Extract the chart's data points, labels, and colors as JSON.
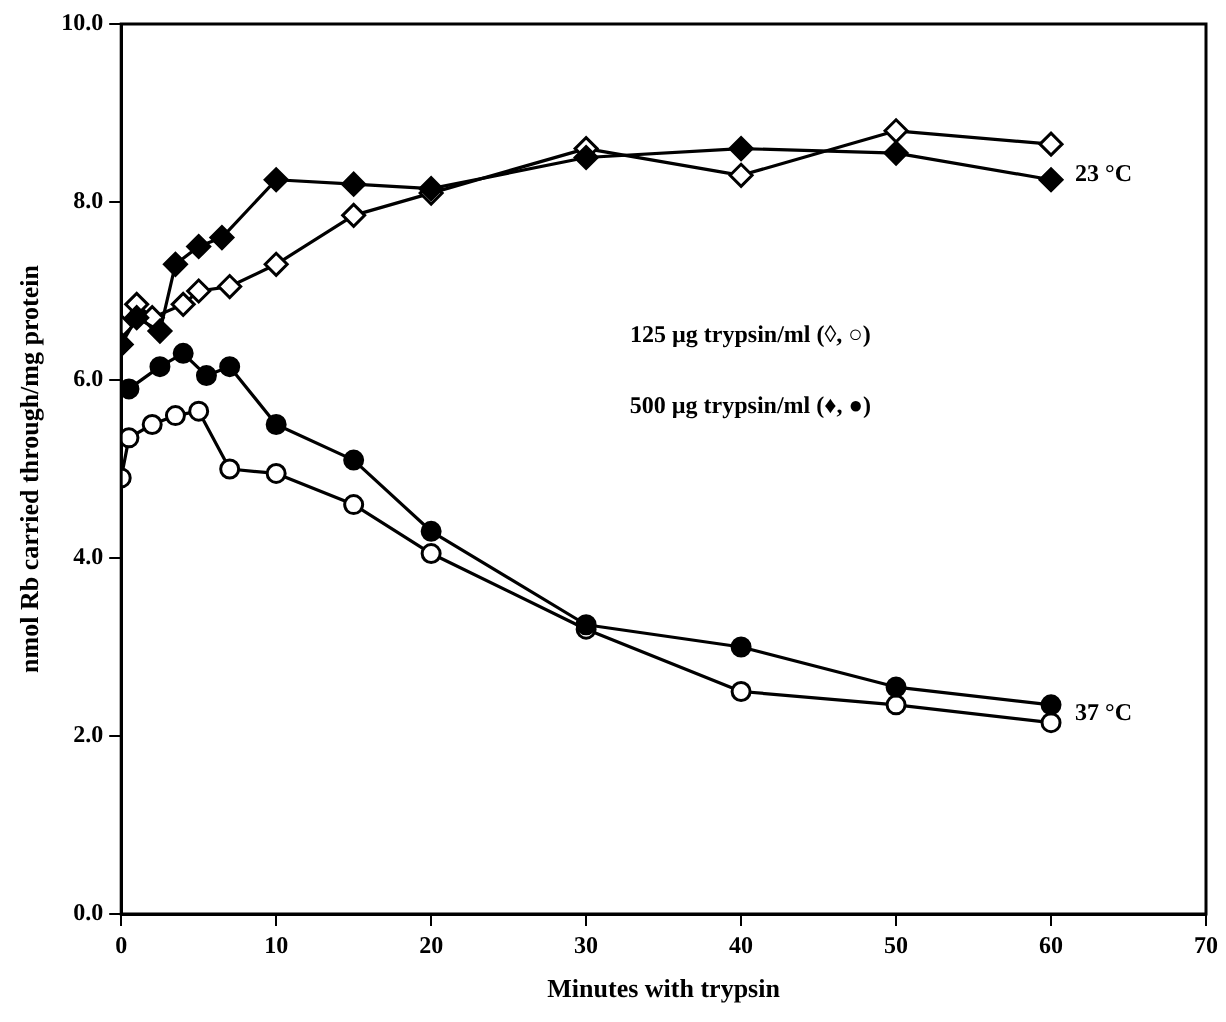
{
  "chart_data": {
    "type": "line",
    "xlabel": "Minutes with trypsin",
    "ylabel": "nmol Rb carried through/mg protein",
    "xlim": [
      0,
      70
    ],
    "xticks": [
      0,
      10,
      20,
      30,
      40,
      50,
      60,
      70
    ],
    "ylim": [
      0,
      10
    ],
    "yticks": [
      {
        "value": 0,
        "label": "0.0"
      },
      {
        "value": 2,
        "label": "2.0"
      },
      {
        "value": 4,
        "label": "4.0"
      },
      {
        "value": 6,
        "label": "6.0"
      },
      {
        "value": 8,
        "label": "8.0"
      },
      {
        "value": 10,
        "label": "10.0"
      }
    ],
    "grid": false,
    "legend": false,
    "line_style": "solid",
    "series": [
      {
        "color": "#000000",
        "marker": "diamond",
        "x": [
          0,
          1,
          2.5,
          3.5,
          5,
          6.5,
          10,
          15,
          20,
          30,
          40,
          50,
          60
        ],
        "values": [
          6.4,
          6.7,
          6.55,
          7.3,
          7.5,
          7.6,
          8.25,
          8.2,
          8.15,
          8.5,
          8.6,
          8.55,
          8.25
        ]
      },
      {
        "color": "#000000",
        "marker": "diamond",
        "colors": [
          "#ffffff",
          "#ffffff",
          "#ffffff",
          "#ffffff",
          "#ffffff",
          "#ffffff",
          "#ffffff",
          "#ffffff",
          "#ffffff",
          "#ffffff",
          "#ffffff",
          "#ffffff",
          "#ffffff"
        ],
        "x": [
          0,
          1,
          2,
          4,
          5,
          7,
          10,
          15,
          20,
          30,
          40,
          50,
          60
        ],
        "values": [
          6.6,
          6.85,
          6.7,
          6.85,
          7.0,
          7.05,
          7.3,
          7.85,
          8.1,
          8.6,
          8.3,
          8.8,
          8.65
        ]
      },
      {
        "color": "#000000",
        "marker": "circle",
        "x": [
          0.5,
          2.5,
          4,
          5.5,
          7,
          10,
          15,
          20,
          30,
          40,
          50,
          60
        ],
        "values": [
          5.9,
          6.15,
          6.3,
          6.05,
          6.15,
          5.5,
          5.1,
          4.3,
          3.25,
          3.0,
          2.55,
          2.35
        ]
      },
      {
        "color": "#000000",
        "marker": "circle",
        "colors": [
          "#ffffff",
          "#ffffff",
          "#ffffff",
          "#ffffff",
          "#ffffff",
          "#ffffff",
          "#ffffff",
          "#ffffff",
          "#ffffff",
          "#ffffff",
          "#ffffff",
          "#ffffff",
          "#ffffff"
        ],
        "x": [
          0,
          0.5,
          2,
          3.5,
          5,
          7,
          10,
          15,
          20,
          30,
          40,
          50,
          60
        ],
        "values": [
          4.9,
          5.35,
          5.5,
          5.6,
          5.65,
          5.0,
          4.95,
          4.6,
          4.05,
          3.2,
          2.5,
          2.35,
          2.15
        ]
      }
    ],
    "annotations": [
      {
        "text": "23 °C",
        "x": 60,
        "y": 8.3
      },
      {
        "text": "37 °C",
        "x": 60,
        "y": 2.25
      },
      "125 µg trypsin/ml (◊, ○)",
      "500 µg trypsin/ml (♦, ●)"
    ]
  }
}
